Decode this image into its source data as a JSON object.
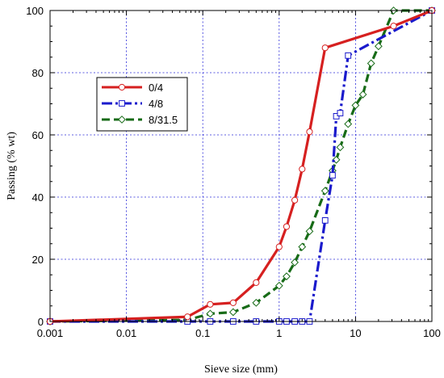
{
  "chart_data": {
    "type": "line",
    "title": "",
    "xlabel": "Sieve size (mm)",
    "ylabel": "Passing (% wt)",
    "xscale": "log",
    "xlim": [
      0.001,
      100
    ],
    "ylim": [
      0,
      100
    ],
    "xticks": [
      0.001,
      0.01,
      0.1,
      1,
      10,
      100
    ],
    "xtick_labels": [
      "0.001",
      "0.01",
      "0.1",
      "1",
      "10",
      "100"
    ],
    "yticks": [
      0,
      20,
      40,
      60,
      80,
      100
    ],
    "ytick_labels": [
      "0",
      "20",
      "40",
      "60",
      "80",
      "100"
    ],
    "grid": true,
    "legend_position": "upper-left",
    "series": [
      {
        "name": "0/4",
        "color": "#d62020",
        "line_style": "solid",
        "marker": "circle",
        "x": [
          0.001,
          0.063,
          0.125,
          0.25,
          0.5,
          1,
          1.25,
          1.6,
          2,
          2.5,
          4,
          31.5,
          100
        ],
        "y": [
          0,
          1.5,
          5.5,
          6,
          12.5,
          24,
          30.5,
          39,
          49,
          61,
          88,
          95,
          100
        ]
      },
      {
        "name": "4/8",
        "color": "#1a1acc",
        "line_style": "dashdot",
        "marker": "square",
        "x": [
          0.001,
          0.063,
          0.125,
          0.25,
          0.5,
          1,
          1.25,
          1.6,
          2,
          2.5,
          4,
          5,
          5.6,
          6.3,
          8,
          100
        ],
        "y": [
          0,
          0,
          0,
          0,
          0,
          0,
          0,
          0,
          0,
          0,
          32.5,
          47,
          66,
          67,
          85.5,
          100
        ]
      },
      {
        "name": "8/31.5",
        "color": "#176b17",
        "line_style": "dashed",
        "marker": "diamond",
        "x": [
          0.001,
          0.063,
          0.125,
          0.25,
          0.5,
          1,
          1.25,
          1.6,
          2,
          2.5,
          4,
          5,
          5.6,
          6.3,
          8,
          10,
          12.5,
          16,
          20,
          31.5,
          100
        ],
        "y": [
          0,
          0.5,
          2.5,
          3,
          6,
          11.5,
          14.5,
          19,
          24,
          29,
          42,
          48.5,
          52,
          56,
          63.5,
          69.5,
          73,
          83,
          88.5,
          100,
          100
        ]
      }
    ]
  }
}
